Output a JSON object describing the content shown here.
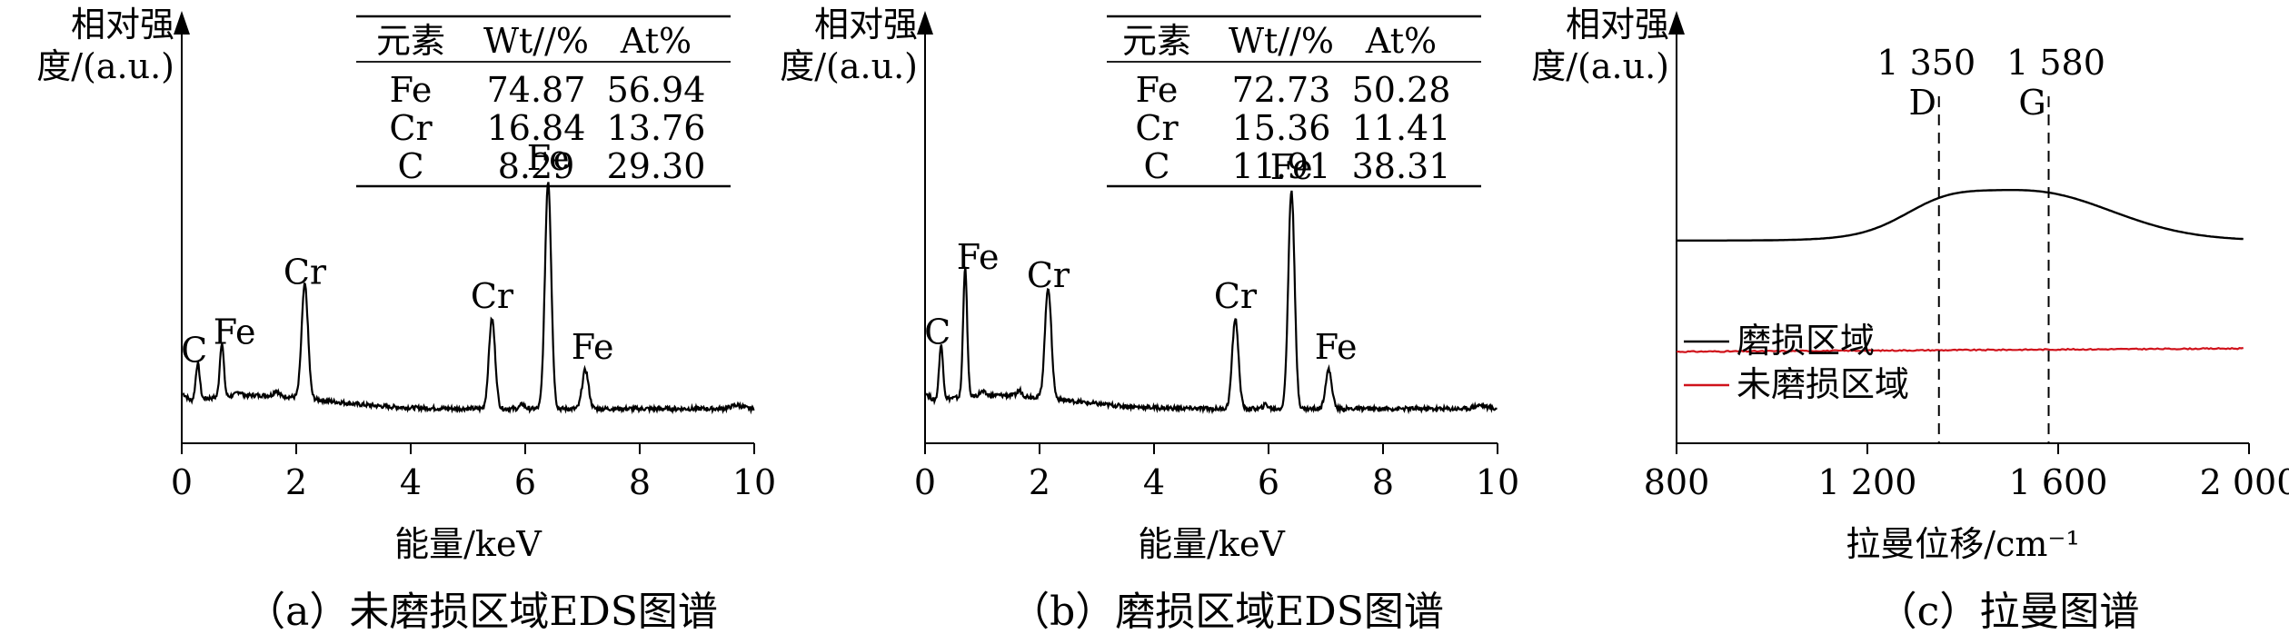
{
  "panels": [
    {
      "caption": "（a）未磨损区域EDS图谱",
      "ylabel_line1": "相对强",
      "ylabel_line2": "度/(a.u.)",
      "xlabel": "能量/keV",
      "table": {
        "headers": [
          "元素",
          "Wt//%",
          "At%"
        ],
        "rows": [
          [
            "Fe",
            "74.87",
            "56.94"
          ],
          [
            "Cr",
            "16.84",
            "13.76"
          ],
          [
            "C",
            "8.29",
            "29.30"
          ]
        ]
      }
    },
    {
      "caption": "（b）磨损区域EDS图谱",
      "ylabel_line1": "相对强",
      "ylabel_line2": "度/(a.u.)",
      "xlabel": "能量/keV",
      "table": {
        "headers": [
          "元素",
          "Wt//%",
          "At%"
        ],
        "rows": [
          [
            "Fe",
            "72.73",
            "50.28"
          ],
          [
            "Cr",
            "15.36",
            "11.41"
          ],
          [
            "C",
            "11.91",
            "38.31"
          ]
        ]
      }
    },
    {
      "caption": "（c）拉曼图谱",
      "ylabel_line1": "相对强",
      "ylabel_line2": "度/(a.u.)",
      "xlabel": "拉曼位移/cm⁻¹",
      "legend": [
        {
          "label": "磨损区域",
          "color": "#000000"
        },
        {
          "label": "未磨损区域",
          "color": "#d0121b"
        }
      ]
    }
  ],
  "chart_data": [
    {
      "type": "line",
      "xlim": [
        0,
        10
      ],
      "xticks": [
        0,
        2,
        4,
        6,
        8,
        10
      ],
      "ylim": [
        0,
        100
      ],
      "peaks": [
        {
          "label": "C",
          "x": 0.28,
          "y": 12
        },
        {
          "label": "Fe",
          "x": 0.7,
          "y": 18
        },
        {
          "label": "Cr",
          "x": 2.15,
          "y": 38
        },
        {
          "label": "Cr",
          "x": 5.42,
          "y": 30
        },
        {
          "label": "Fe",
          "x": 6.4,
          "y": 76
        },
        {
          "label": "Fe",
          "x": 7.05,
          "y": 13
        }
      ]
    },
    {
      "type": "line",
      "xlim": [
        0,
        10
      ],
      "xticks": [
        0,
        2,
        4,
        6,
        8,
        10
      ],
      "ylim": [
        0,
        100
      ],
      "peaks": [
        {
          "label": "C",
          "x": 0.28,
          "y": 18
        },
        {
          "label": "Fe",
          "x": 0.7,
          "y": 43
        },
        {
          "label": "Cr",
          "x": 2.15,
          "y": 37
        },
        {
          "label": "Cr",
          "x": 5.42,
          "y": 30
        },
        {
          "label": "Fe",
          "x": 6.4,
          "y": 73
        },
        {
          "label": "Fe",
          "x": 7.05,
          "y": 13
        }
      ]
    },
    {
      "type": "line",
      "xlim": [
        800,
        2000
      ],
      "xticks": [
        800,
        1200,
        1600,
        2000
      ],
      "xtick_labels": [
        "800",
        "1 200",
        "1 600",
        "2 000"
      ],
      "ylim": [
        0,
        100
      ],
      "vlines": [
        {
          "x": 1350,
          "value_label": "1 350",
          "band_label": "D"
        },
        {
          "x": 1580,
          "value_label": "1 580",
          "band_label": "G"
        }
      ],
      "series": [
        {
          "name": "磨损区域",
          "color": "#000000",
          "baseline": 62,
          "peak_x": 1540,
          "peak_height": 15
        },
        {
          "name": "未磨损区域",
          "color": "#d0121b",
          "baseline": 28,
          "slope": 1.0
        }
      ]
    }
  ]
}
